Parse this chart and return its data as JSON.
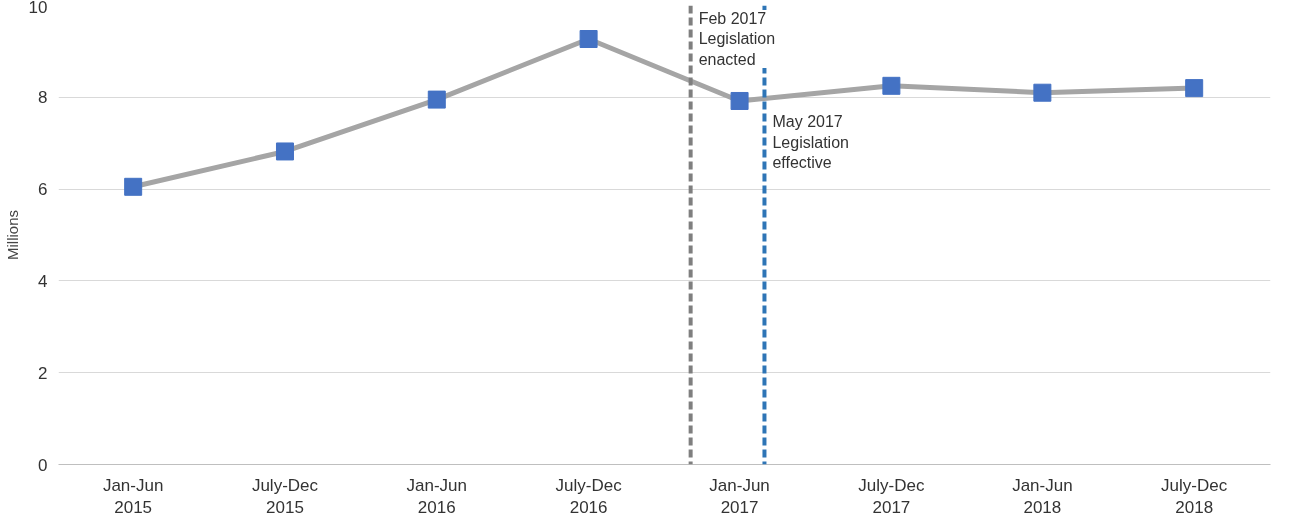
{
  "chart_data": {
    "type": "line",
    "ylabel": "Millions",
    "x": [
      "2015-04",
      "2015-10",
      "2016-04",
      "2016-10",
      "2017-04",
      "2017-10",
      "2018-04",
      "2018-10"
    ],
    "series": [
      {
        "color": "#4472c4",
        "values": [
          6.05,
          6.82,
          7.95,
          9.27,
          7.92,
          8.25,
          8.1,
          8.2
        ]
      }
    ],
    "marker": "square",
    "line_style": "solid",
    "xlim": [
      "2015-01",
      "2019-01"
    ],
    "xticks": [
      {
        "value": "2015-04",
        "label": "Jan-Jun\n2015"
      },
      {
        "value": "2015-10",
        "label": "July-Dec\n2015"
      },
      {
        "value": "2016-04",
        "label": "Jan-Jun\n2016"
      },
      {
        "value": "2016-10",
        "label": "July-Dec\n2016"
      },
      {
        "value": "2017-04",
        "label": "Jan-Jun\n2017"
      },
      {
        "value": "2017-10",
        "label": "July-Dec\n2017"
      },
      {
        "value": "2018-04",
        "label": "Jan-Jun\n2018"
      },
      {
        "value": "2018-10",
        "label": "July-Dec\n2018"
      }
    ],
    "ylim": [
      0,
      10
    ],
    "yticks": [
      0,
      2,
      4,
      6,
      8,
      10
    ],
    "grid": "y",
    "ref_lines": [
      {
        "axis": "x",
        "value": "2017-02",
        "label": "Feb 2017\nLegislation\nenacted",
        "color": "#7f7f7f",
        "line_style": "dashed"
      },
      {
        "axis": "x",
        "value": "2017-05",
        "label": "May 2017\nLegislation\neffective",
        "color": "#2e75b6",
        "line_style": "dashed"
      }
    ]
  }
}
